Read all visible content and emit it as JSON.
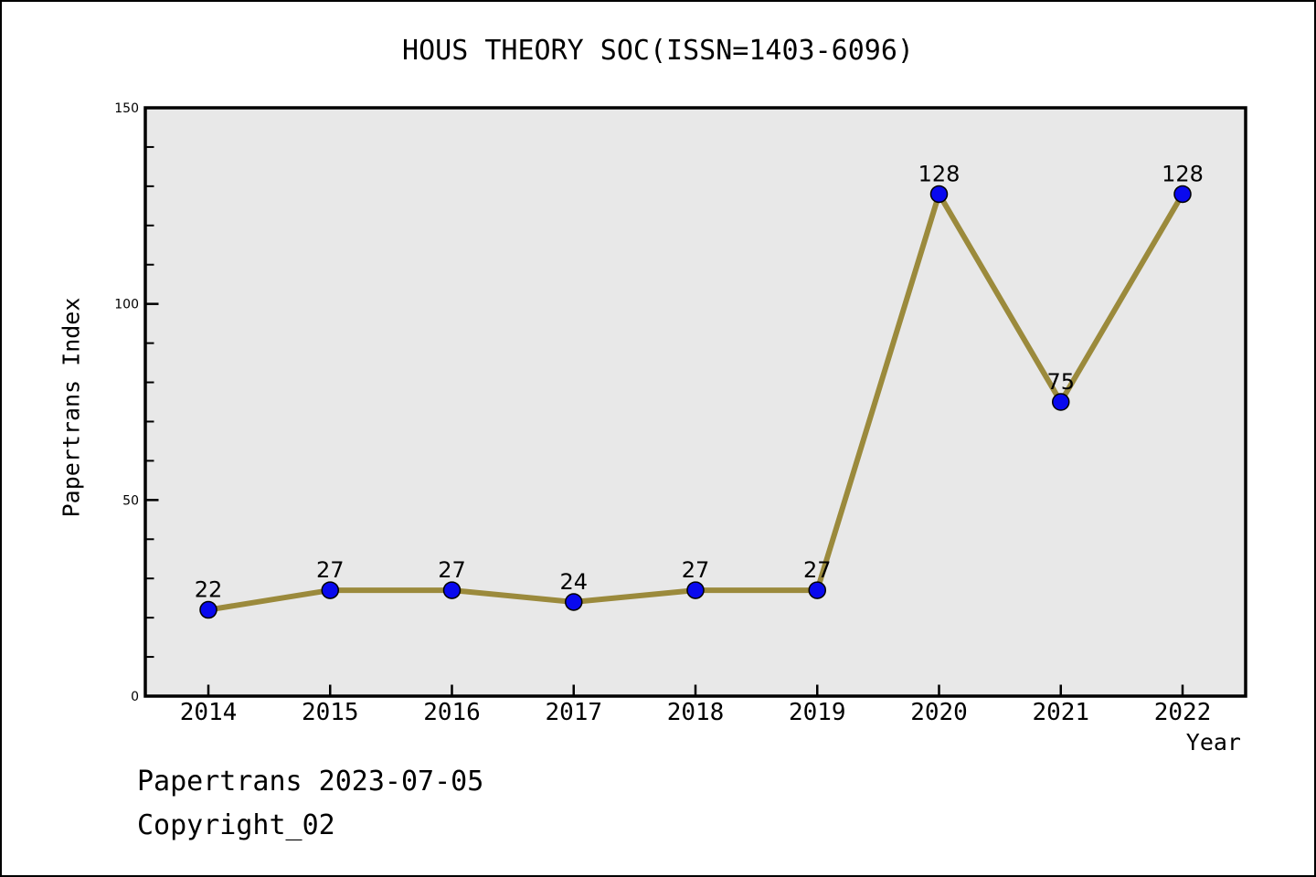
{
  "title": "HOUS THEORY SOC(ISSN=1403-6096)",
  "footer": {
    "line1": "Papertrans 2023-07-05",
    "line2": "Copyright_02"
  },
  "chart_data": {
    "type": "line",
    "title": "HOUS THEORY SOC(ISSN=1403-6096)",
    "categories": [
      "2014",
      "2015",
      "2016",
      "2017",
      "2018",
      "2019",
      "2020",
      "2021",
      "2022"
    ],
    "values": [
      22,
      27,
      27,
      24,
      27,
      27,
      128,
      75,
      128
    ],
    "point_labels": [
      "22",
      "27",
      "27",
      "24",
      "27",
      "27",
      "128",
      "75",
      "128"
    ],
    "xlabel": "Year",
    "ylabel": "Papertrans Index",
    "ylim": [
      0,
      150
    ],
    "yticks": [
      0,
      50,
      100,
      150
    ],
    "ytick_labels": [
      "0",
      "50",
      "100",
      "150"
    ],
    "y_minor_step": 10,
    "grid": false,
    "legend": "none",
    "marker": "circle"
  },
  "colors": {
    "line": "#9b8a3c",
    "marker_fill": "#0909ee",
    "marker_edge": "#000000",
    "plot_bg": "#e8e8e8",
    "figure_bg": "#ffffff",
    "frame": "#000000",
    "text": "#000000"
  }
}
